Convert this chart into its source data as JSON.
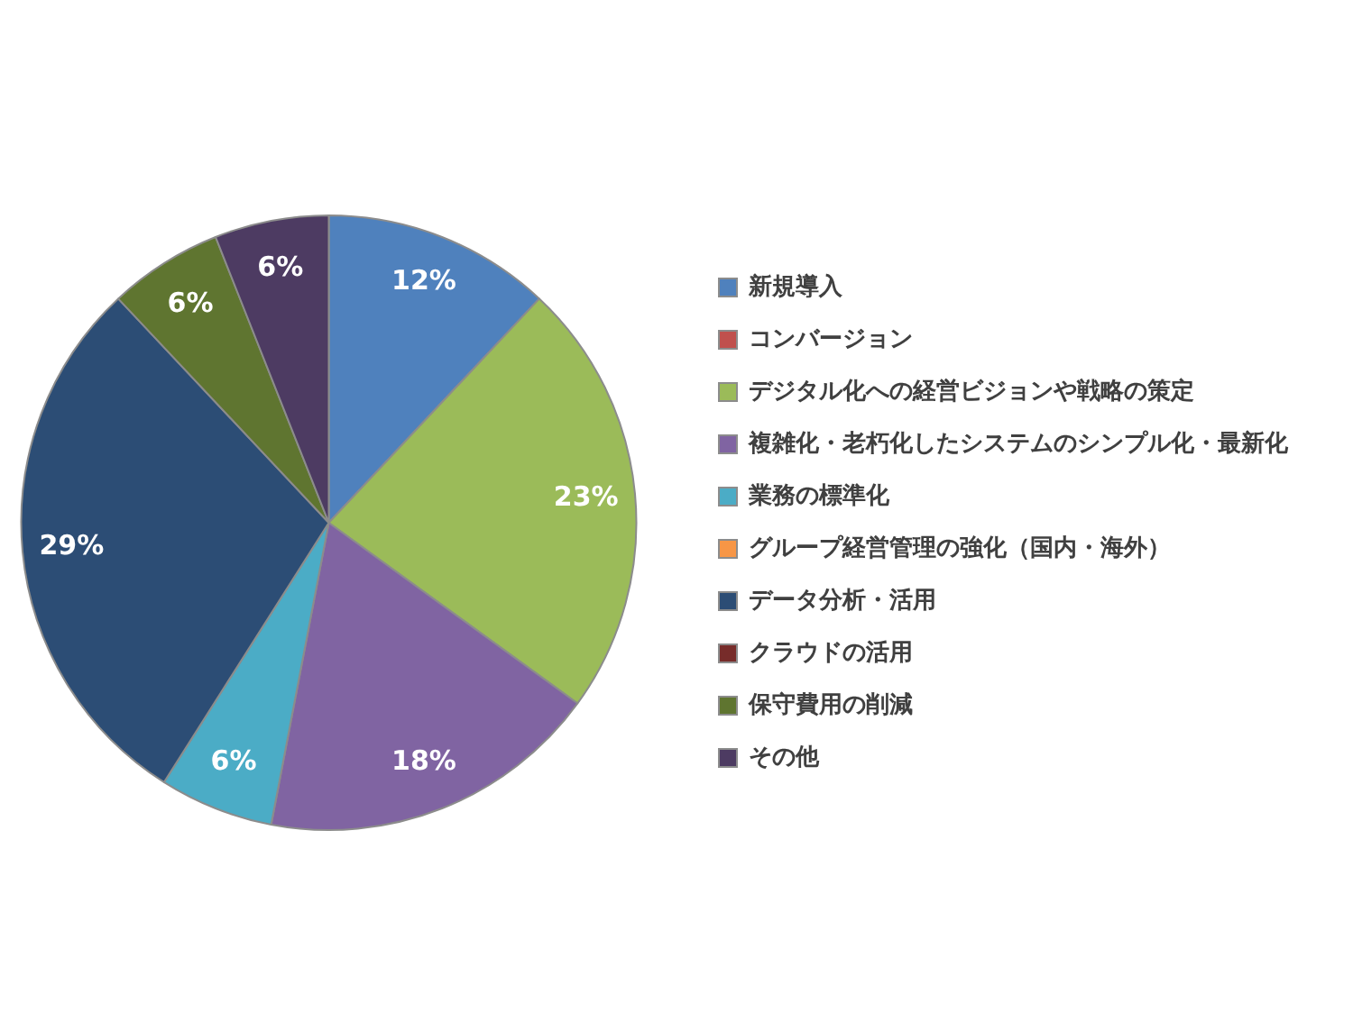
{
  "chart_data": {
    "type": "pie",
    "categories": [
      "新規導入",
      "コンバージョン",
      "デジタル化への経営ビジョンや戦略の策定",
      "複雑化・老朽化したシステムのシンプル化・最新化",
      "業務の標準化",
      "グループ経営管理の強化（国内・海外）",
      "データ分析・活用",
      "クラウドの活用",
      "保守費用の削減",
      "その他"
    ],
    "values": [
      12,
      0,
      23,
      18,
      6,
      0,
      29,
      0,
      6,
      6
    ],
    "colors": [
      "#4f81bd",
      "#c0504d",
      "#9bbb59",
      "#8064a2",
      "#4bacc6",
      "#f79646",
      "#2c4d75",
      "#772c2a",
      "#5f7530",
      "#4d3b62"
    ],
    "value_labels": [
      "12%",
      null,
      "23%",
      "18%",
      "6%",
      null,
      "29%",
      null,
      "6%",
      "6%"
    ],
    "legend": "right"
  }
}
